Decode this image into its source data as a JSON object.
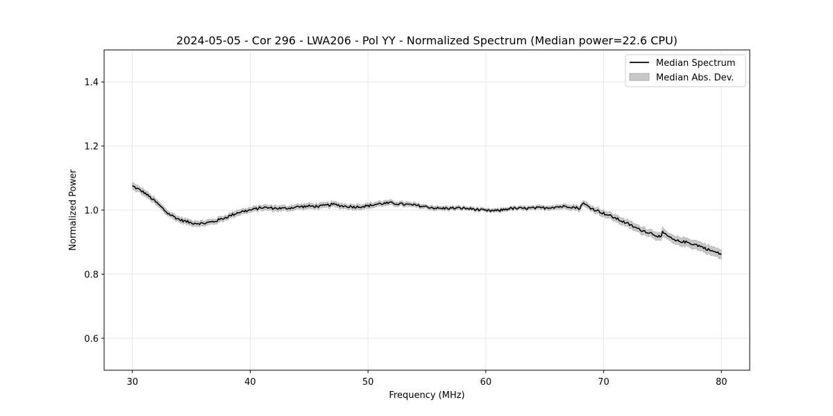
{
  "chart_data": {
    "type": "line",
    "title": "2024-05-05 - Cor 296 - LWA206 - Pol YY - Normalized Spectrum (Median power=22.6 CPU)",
    "xlabel": "Frequency (MHz)",
    "ylabel": "Normalized Power",
    "xlim": [
      27.6,
      82.4
    ],
    "ylim": [
      0.5,
      1.5
    ],
    "xticks": [
      30,
      40,
      50,
      60,
      70,
      80
    ],
    "yticks": [
      0.6,
      0.8,
      1.0,
      1.2,
      1.4
    ],
    "ytick_labels": [
      "0.6",
      "0.8",
      "1.0",
      "1.2",
      "1.4"
    ],
    "grid": true,
    "legend_position": "top-right",
    "colors": {
      "line": "#000000",
      "band": "#a8a8a8",
      "grid": "#e6e6e6"
    },
    "series": [
      {
        "name": "Median Spectrum",
        "x": [
          30,
          31,
          32,
          33,
          34,
          35,
          36,
          37,
          38,
          39,
          40,
          41,
          42,
          43,
          44,
          45,
          46,
          47,
          48,
          49,
          50,
          51,
          52,
          53,
          54,
          55,
          56,
          57,
          58,
          59,
          60,
          61,
          62,
          63,
          64,
          65,
          66,
          67,
          68,
          68.2,
          69,
          70,
          71,
          72,
          73,
          74,
          74.9,
          75,
          76,
          77,
          78,
          79,
          80
        ],
        "y": [
          1.075,
          1.055,
          1.025,
          0.99,
          0.97,
          0.96,
          0.958,
          0.965,
          0.978,
          0.993,
          1.0,
          1.008,
          1.006,
          1.005,
          1.01,
          1.012,
          1.012,
          1.018,
          1.012,
          1.01,
          1.013,
          1.02,
          1.022,
          1.018,
          1.015,
          1.01,
          1.005,
          1.006,
          1.006,
          1.003,
          0.998,
          0.998,
          1.005,
          1.005,
          1.006,
          1.007,
          1.01,
          1.012,
          1.005,
          1.022,
          1.005,
          0.99,
          0.975,
          0.958,
          0.94,
          0.928,
          0.915,
          0.93,
          0.905,
          0.9,
          0.89,
          0.875,
          0.862
        ]
      },
      {
        "name": "Median Abs. Dev.",
        "type": "band",
        "x": [
          30,
          35,
          40,
          50,
          60,
          65,
          68,
          70,
          75,
          80
        ],
        "half_width": [
          0.01,
          0.008,
          0.008,
          0.008,
          0.005,
          0.006,
          0.008,
          0.01,
          0.012,
          0.014
        ]
      }
    ]
  }
}
